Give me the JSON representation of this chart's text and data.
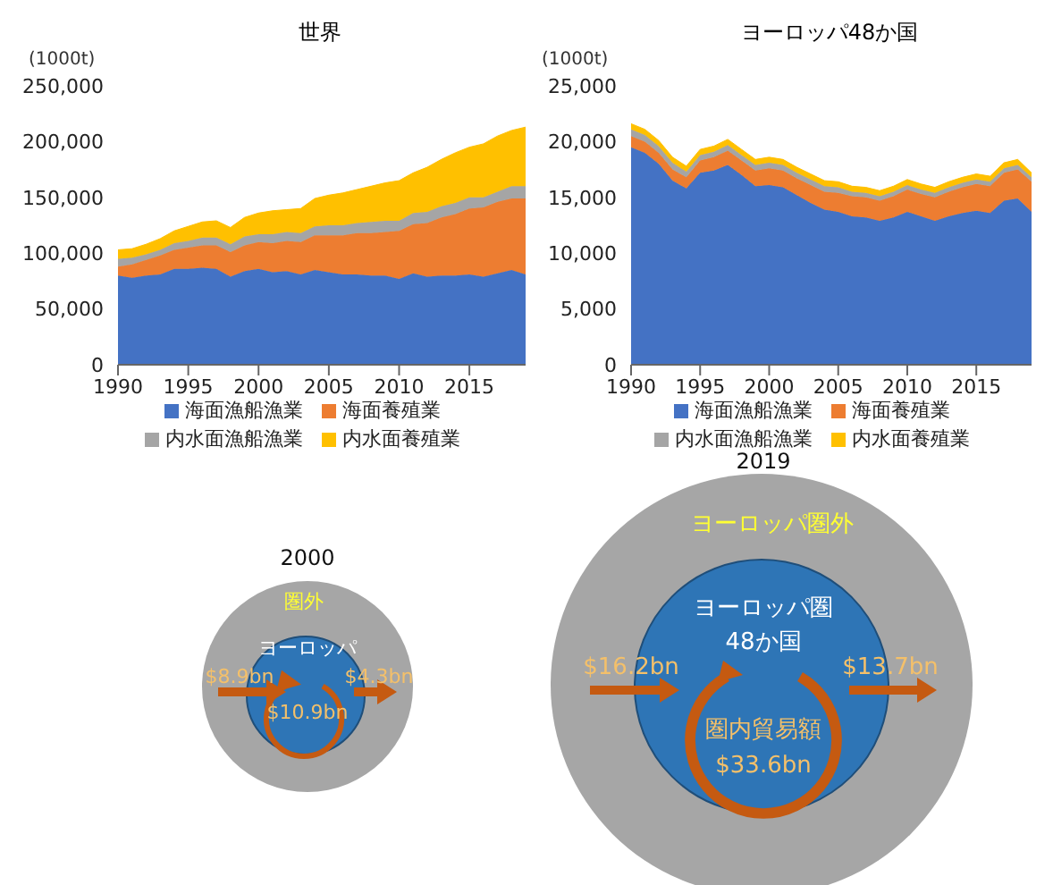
{
  "chart_data": [
    {
      "type": "area",
      "title": "世界",
      "ylabel": "(1000t)",
      "stacked": true,
      "legend": "bottom",
      "x": [
        1990,
        1991,
        1992,
        1993,
        1994,
        1995,
        1996,
        1997,
        1998,
        1999,
        2000,
        2001,
        2002,
        2003,
        2004,
        2005,
        2006,
        2007,
        2008,
        2009,
        2010,
        2011,
        2012,
        2013,
        2014,
        2015,
        2016,
        2017,
        2018,
        2019
      ],
      "series": [
        {
          "name": "海面漁船漁業",
          "color": "#4472c4",
          "values": [
            80000,
            78000,
            80000,
            81000,
            86000,
            86000,
            87000,
            86000,
            79000,
            84000,
            86000,
            83000,
            84000,
            81000,
            85000,
            83000,
            81000,
            81000,
            80000,
            80000,
            77000,
            82000,
            79000,
            80000,
            80000,
            81000,
            79000,
            82000,
            85000,
            81000
          ]
        },
        {
          "name": "海面養殖業",
          "color": "#ed7d31",
          "values": [
            8000,
            12000,
            14000,
            17000,
            17000,
            19000,
            20000,
            21000,
            22000,
            23000,
            24000,
            26000,
            27000,
            29000,
            31000,
            33000,
            35000,
            37000,
            38000,
            39000,
            43000,
            44000,
            48000,
            52000,
            55000,
            59000,
            62000,
            64000,
            64000,
            68000
          ]
        },
        {
          "name": "内水面漁船漁業",
          "color": "#a5a5a5",
          "values": [
            7000,
            6000,
            5000,
            5000,
            6000,
            6000,
            7000,
            7000,
            7000,
            8000,
            7000,
            8000,
            8000,
            8000,
            8000,
            9000,
            9000,
            9000,
            10000,
            10000,
            9000,
            10000,
            10000,
            10000,
            10000,
            10000,
            9000,
            9000,
            11000,
            11000
          ]
        },
        {
          "name": "内水面養殖業",
          "color": "#ffc000",
          "values": [
            8000,
            8000,
            9000,
            10000,
            11000,
            13000,
            14000,
            15000,
            15000,
            17000,
            19000,
            21000,
            20000,
            22000,
            25000,
            27000,
            29000,
            30000,
            32000,
            34000,
            36000,
            36000,
            40000,
            42000,
            45000,
            45000,
            48000,
            50000,
            50000,
            53000
          ]
        }
      ],
      "xlim": [
        1990,
        2019
      ],
      "xticks": [
        1990,
        1995,
        2000,
        2005,
        2010,
        2015
      ],
      "ylim": [
        0,
        250000
      ],
      "yticks": [
        0,
        {
          "value": 50000,
          "label": "50,000"
        },
        {
          "value": 100000,
          "label": "100,000"
        },
        {
          "value": 150000,
          "label": "150,000"
        },
        {
          "value": 200000,
          "label": "200,000"
        },
        {
          "value": 250000,
          "label": "250,000"
        }
      ]
    },
    {
      "type": "area",
      "title": "ヨーロッパ48か国",
      "ylabel": "(1000t)",
      "stacked": true,
      "legend": "bottom",
      "x": [
        1990,
        1991,
        1992,
        1993,
        1994,
        1995,
        1996,
        1997,
        1998,
        1999,
        2000,
        2001,
        2002,
        2003,
        2004,
        2005,
        2006,
        2007,
        2008,
        2009,
        2010,
        2011,
        2012,
        2013,
        2014,
        2015,
        2016,
        2017,
        2018,
        2019
      ],
      "series": [
        {
          "name": "海面漁船漁業",
          "color": "#4472c4",
          "values": [
            19500,
            19000,
            18000,
            16500,
            15800,
            17200,
            17400,
            17900,
            17000,
            16000,
            16100,
            15900,
            15200,
            14500,
            13900,
            13700,
            13300,
            13200,
            12900,
            13200,
            13700,
            13300,
            12900,
            13300,
            13600,
            13800,
            13600,
            14700,
            14900,
            13700
          ]
        },
        {
          "name": "海面養殖業",
          "color": "#ed7d31",
          "values": [
            1000,
            1000,
            1000,
            1000,
            1000,
            1100,
            1200,
            1300,
            1300,
            1400,
            1500,
            1500,
            1500,
            1600,
            1600,
            1700,
            1800,
            1800,
            1800,
            1900,
            2000,
            2000,
            2100,
            2200,
            2300,
            2400,
            2400,
            2500,
            2600,
            2700
          ]
        },
        {
          "name": "内水面漁船漁業",
          "color": "#a5a5a5",
          "values": [
            600,
            600,
            600,
            600,
            500,
            500,
            500,
            500,
            500,
            500,
            500,
            500,
            500,
            500,
            500,
            500,
            400,
            400,
            400,
            400,
            400,
            400,
            400,
            400,
            400,
            400,
            400,
            400,
            400,
            400
          ]
        },
        {
          "name": "内水面養殖業",
          "color": "#ffc000",
          "values": [
            500,
            500,
            500,
            500,
            500,
            500,
            500,
            500,
            500,
            500,
            500,
            500,
            500,
            500,
            500,
            500,
            500,
            500,
            500,
            500,
            500,
            500,
            500,
            500,
            500,
            500,
            500,
            500,
            500,
            400
          ]
        }
      ],
      "xlim": [
        1990,
        2019
      ],
      "xticks": [
        1990,
        1995,
        2000,
        2005,
        2010,
        2015
      ],
      "ylim": [
        0,
        25000
      ],
      "yticks": [
        0,
        {
          "value": 5000,
          "label": "5,000"
        },
        {
          "value": 10000,
          "label": "10,000"
        },
        {
          "value": 15000,
          "label": "15,000"
        },
        {
          "value": 20000,
          "label": "20,000"
        },
        {
          "value": 25000,
          "label": "25,000"
        }
      ]
    },
    {
      "type": "other",
      "title": "2000",
      "annotations": [
        "圏外",
        "ヨーロッパ",
        "$8.9bn",
        "$4.3bn",
        "$10.9bn"
      ]
    },
    {
      "type": "other",
      "title": "2019",
      "annotations": [
        "ヨーロッパ圏外",
        "ヨーロッパ圏",
        "48か国",
        "$16.2bn",
        "$13.7bn",
        "圏内貿易額",
        "$33.6bn"
      ]
    }
  ]
}
